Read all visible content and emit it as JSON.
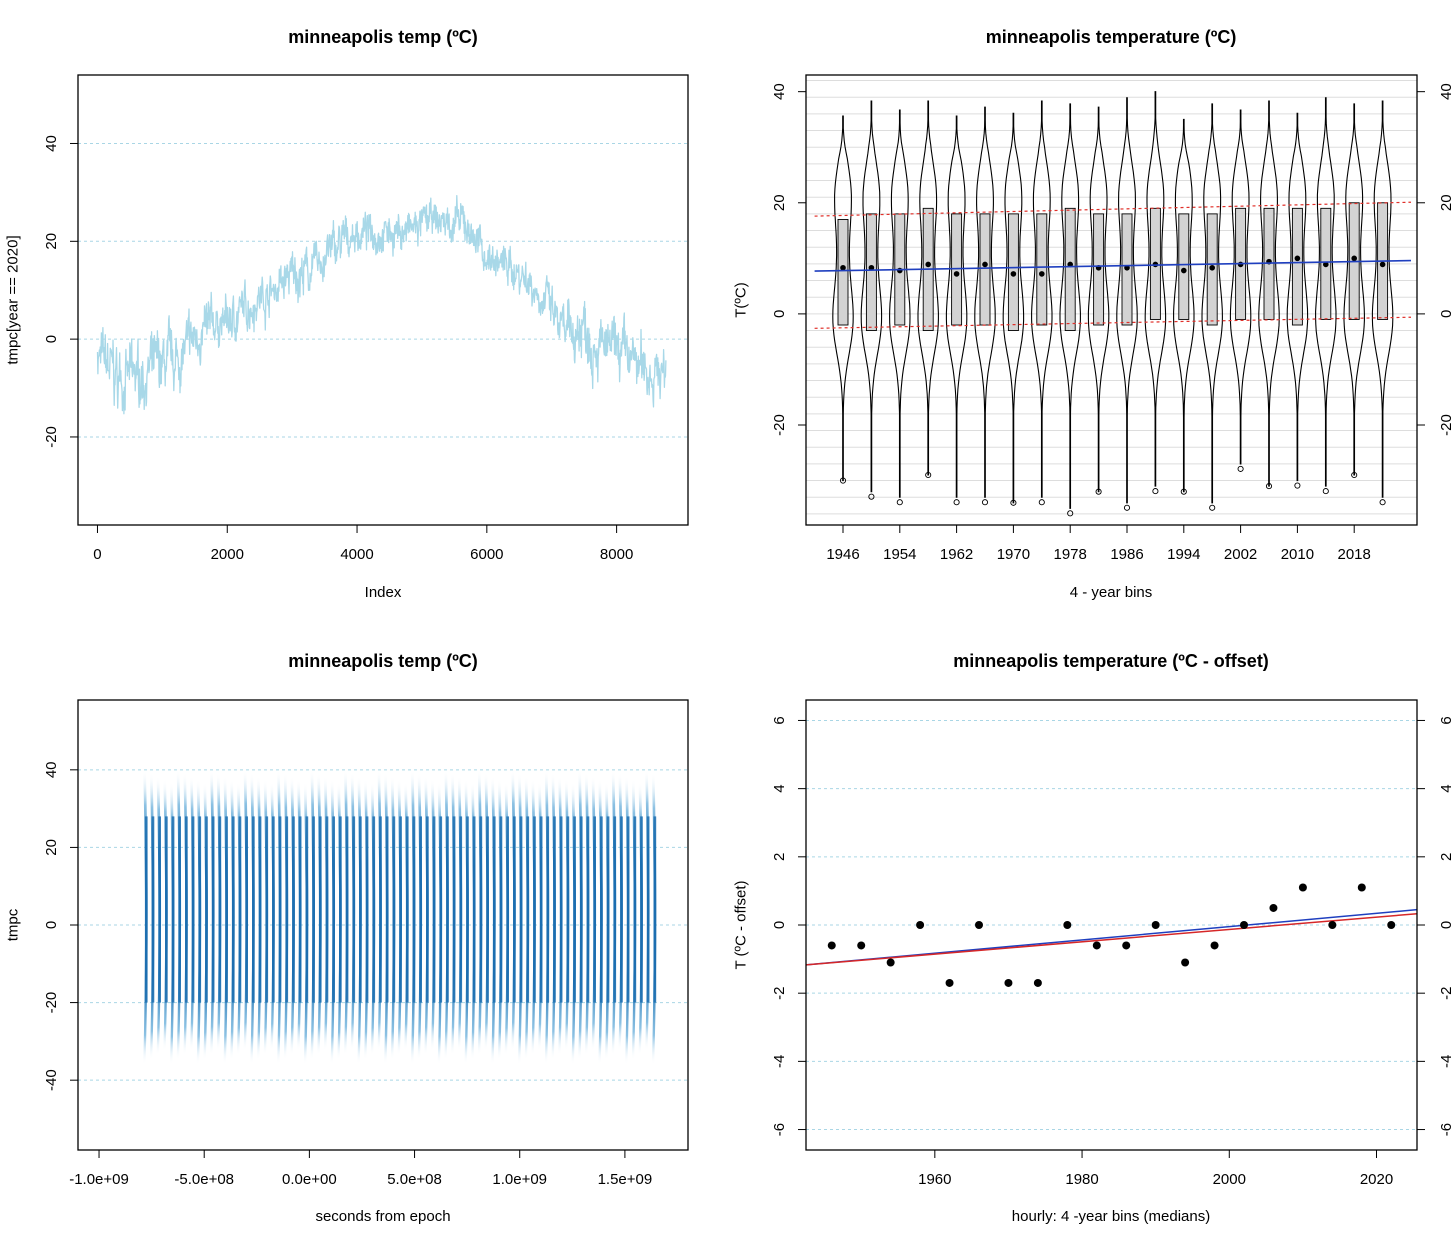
{
  "panels": {
    "p1": {
      "title": "minneapolis temp (ºC)",
      "xlabel": "Index",
      "ylabel": "tmpc[year == 2020]"
    },
    "p2": {
      "title": "minneapolis temperature (ºC)",
      "xlabel": "4 - year bins",
      "ylabel": "T(ºC)"
    },
    "p3": {
      "title": "minneapolis temp (ºC)",
      "xlabel": "seconds from epoch",
      "ylabel": "tmpc"
    },
    "p4": {
      "title": "minneapolis temperature (ºC - offset)",
      "xlabel": "hourly:  4 -year bins (medians)",
      "ylabel": "T (ºC - offset)"
    }
  },
  "colors": {
    "line_light_blue": "#a8d8e8",
    "violin_blue": "#1c6fb0",
    "gridline": "#a9d6e5",
    "box_fill": "#d3d3d3",
    "trend_blue": "#1f3fbf",
    "trend_red": "#d62728",
    "band_red": "#e0302a"
  },
  "chart_data": [
    {
      "type": "line",
      "title": "minneapolis temp (ºC)",
      "xlabel": "Index",
      "ylabel": "tmpc[year == 2020]",
      "xlim": [
        -300,
        9100
      ],
      "ylim": [
        -38,
        54
      ],
      "x_ticks": [
        "0",
        "2000",
        "4000",
        "6000",
        "8000"
      ],
      "y_ticks": [
        "-20",
        "0",
        "20",
        "40"
      ],
      "grid": "horizontal dotted",
      "series": [
        {
          "x": [
            0,
            300,
            600,
            900,
            1200,
            1500,
            1800,
            2100,
            2400,
            2700,
            3000,
            3300,
            3600,
            3900,
            4200,
            4500,
            4800,
            5100,
            5400,
            5700,
            6000,
            6300,
            6600,
            6900,
            7200,
            7500,
            7800,
            8100,
            8400,
            8760
          ],
          "y": [
            -3,
            -8,
            -8,
            -6,
            -5,
            0,
            3,
            4,
            8,
            10,
            13,
            14,
            18,
            21,
            22,
            22,
            22,
            24,
            24,
            23,
            17,
            15,
            13,
            8,
            0,
            3,
            -2,
            -3,
            -6,
            -7
          ],
          "spread": [
            6,
            9,
            8,
            8,
            8,
            6,
            6,
            6,
            6,
            6,
            6,
            6,
            6,
            5,
            5,
            5,
            5,
            5,
            5,
            5,
            5,
            5,
            6,
            6,
            7,
            9,
            7,
            7,
            8,
            7
          ]
        }
      ]
    },
    {
      "type": "box",
      "title": "minneapolis temperature (ºC)",
      "xlabel": "4 - year bins",
      "ylabel": "T(ºC)",
      "ylim": [
        -38,
        43
      ],
      "categories": [
        "1946",
        "1950",
        "1954",
        "1958",
        "1962",
        "1966",
        "1970",
        "1974",
        "1978",
        "1982",
        "1986",
        "1990",
        "1994",
        "1998",
        "2002",
        "2006",
        "2010",
        "2014",
        "2018",
        "2022"
      ],
      "tick_labels": [
        "1946",
        "1954",
        "1962",
        "1970",
        "1978",
        "1986",
        "1994",
        "2002",
        "2010",
        "2018"
      ],
      "y_ticks": [
        "-20",
        "0",
        "20",
        "40"
      ],
      "q1": [
        -2,
        -3,
        -2,
        -3,
        -2,
        -2,
        -3,
        -2,
        -3,
        -2,
        -2,
        -1,
        -1,
        -2,
        -1,
        -1,
        -2,
        -1,
        -1,
        -1
      ],
      "median": [
        8.3,
        8.3,
        7.8,
        8.9,
        7.2,
        8.9,
        7.2,
        7.2,
        8.9,
        8.3,
        8.3,
        8.9,
        7.8,
        8.3,
        8.9,
        9.4,
        10,
        8.9,
        10,
        8.9
      ],
      "q3": [
        17,
        18,
        18,
        19,
        18,
        18,
        18,
        18,
        19,
        18,
        18,
        19,
        18,
        18,
        19,
        19,
        19,
        19,
        20,
        20
      ],
      "max": [
        35.6,
        38.3,
        36.7,
        38.3,
        35.6,
        37.2,
        36.1,
        38.3,
        37.8,
        37.2,
        38.9,
        40,
        35,
        37.8,
        36.7,
        38.3,
        36.1,
        38.9,
        37.8,
        38.3
      ],
      "min": [
        -30,
        -32,
        -33,
        -29,
        -33,
        -33,
        -34,
        -33,
        -35,
        -32,
        -34,
        -31,
        -32,
        -34,
        -27,
        -31,
        -30,
        -31,
        -29,
        -33
      ],
      "trend_median": {
        "x": [
          1942,
          2026
        ],
        "y": [
          7.7,
          9.6
        ]
      },
      "trend_q3": {
        "x": [
          1942,
          2026
        ],
        "y": [
          17.6,
          20.1
        ]
      },
      "trend_q1": {
        "x": [
          1942,
          2026
        ],
        "y": [
          -2.6,
          -0.6
        ]
      }
    },
    {
      "type": "area",
      "title": "minneapolis temp (ºC)",
      "xlabel": "seconds from epoch",
      "ylabel": "tmpc",
      "xlim": [
        -1100000000.0,
        1800000000.0
      ],
      "ylim": [
        -58,
        58
      ],
      "x_ticks": [
        "-1.0e+09",
        "-5.0e+08",
        "0.0e+00",
        "5.0e+08",
        "1.0e+09",
        "1.5e+09"
      ],
      "y_ticks": [
        "-40",
        "-20",
        "0",
        "20",
        "40"
      ],
      "x_range": [
        -790000000.0,
        1660000000.0
      ],
      "y_range": [
        -36,
        40
      ],
      "cycles": 77
    },
    {
      "type": "scatter",
      "title": "minneapolis temperature (ºC - offset)",
      "xlabel": "hourly:  4 -year bins (medians)",
      "ylabel": "T (ºC - offset)",
      "xlim": [
        1942.5,
        2025.5
      ],
      "ylim": [
        -6.6,
        6.6
      ],
      "x_ticks": [
        "1960",
        "1980",
        "2000",
        "2020"
      ],
      "y_ticks": [
        "-6",
        "-4",
        "-2",
        "0",
        "2",
        "4",
        "6"
      ],
      "x": [
        1946,
        1950,
        1954,
        1958,
        1962,
        1966,
        1970,
        1974,
        1978,
        1982,
        1986,
        1990,
        1994,
        1998,
        2002,
        2006,
        2010,
        2014,
        2018,
        2022
      ],
      "y": [
        -0.6,
        -0.6,
        -1.1,
        0,
        -1.7,
        0,
        -1.7,
        -1.7,
        0,
        -0.6,
        -0.6,
        0,
        -1.1,
        -0.6,
        0,
        0.5,
        1.1,
        0,
        1.1,
        0
      ],
      "trend_blue": {
        "x": [
          1942.5,
          2025.5
        ],
        "y": [
          -1.17,
          0.45
        ]
      },
      "trend_red": {
        "x": [
          1942.5,
          2025.5
        ],
        "y": [
          -1.17,
          0.33
        ]
      }
    }
  ]
}
